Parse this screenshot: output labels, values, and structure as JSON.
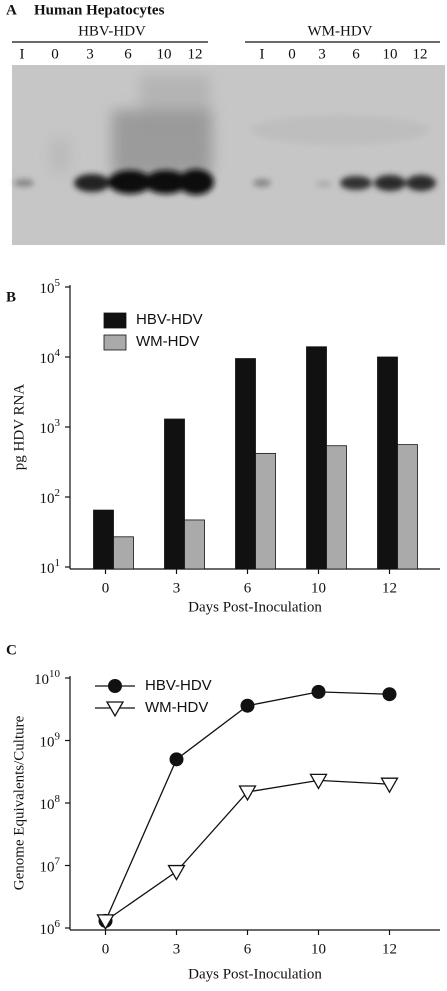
{
  "panel_a": {
    "label": "A",
    "title": "Human Hepatocytes",
    "groups": [
      {
        "name": "HBV-HDV",
        "lanes": [
          "I",
          "0",
          "3",
          "6",
          "10",
          "12"
        ]
      },
      {
        "name": "WM-HDV",
        "lanes": [
          "I",
          "0",
          "3",
          "6",
          "10",
          "12"
        ]
      }
    ]
  },
  "chart_data": [
    {
      "type": "bar",
      "panel_label": "B",
      "ylabel": "pg HDV RNA",
      "xlabel": "Days Post-Inoculation",
      "categories": [
        "0",
        "3",
        "6",
        "10",
        "12"
      ],
      "yscale": "log",
      "ylim": [
        10,
        100000
      ],
      "yticks": [
        {
          "value": 10,
          "label": "10",
          "exponent": "1"
        },
        {
          "value": 100,
          "label": "10",
          "exponent": "2"
        },
        {
          "value": 1000,
          "label": "10",
          "exponent": "3"
        },
        {
          "value": 10000,
          "label": "10",
          "exponent": "4"
        },
        {
          "value": 100000,
          "label": "10",
          "exponent": "5"
        }
      ],
      "series": [
        {
          "name": "HBV-HDV",
          "color": "#111111",
          "values": [
            65,
            1300,
            9500,
            14000,
            10000
          ]
        },
        {
          "name": "WM-HDV",
          "color": "#aaaaaa",
          "values": [
            27,
            47,
            420,
            540,
            560
          ]
        }
      ]
    },
    {
      "type": "line",
      "panel_label": "C",
      "ylabel": "Genome Equivalents/Culture",
      "xlabel": "Days Post-Inoculation",
      "categories": [
        "0",
        "3",
        "6",
        "10",
        "12"
      ],
      "yscale": "log",
      "ylim": [
        1000000,
        10000000000
      ],
      "yticks": [
        {
          "value": 1000000,
          "label": "10",
          "exponent": "6"
        },
        {
          "value": 10000000,
          "label": "10",
          "exponent": "7"
        },
        {
          "value": 100000000,
          "label": "10",
          "exponent": "8"
        },
        {
          "value": 1000000000,
          "label": "10",
          "exponent": "9"
        },
        {
          "value": 10000000000,
          "label": "10",
          "exponent": "10"
        }
      ],
      "series": [
        {
          "name": "HBV-HDV",
          "color": "#111111",
          "marker": "circle",
          "values": [
            1300000,
            500000000,
            3600000000,
            6000000000,
            5500000000
          ]
        },
        {
          "name": "WM-HDV",
          "color": "#111111",
          "marker": "triangle-down",
          "values": [
            1300000,
            8000000,
            150000000,
            230000000,
            200000000
          ]
        }
      ]
    }
  ]
}
